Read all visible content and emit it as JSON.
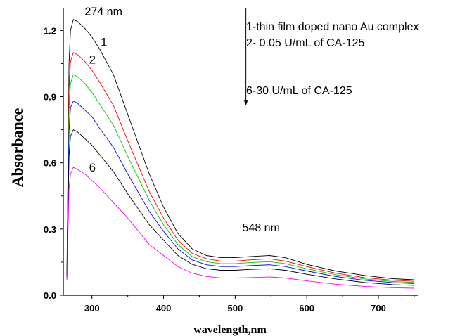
{
  "chart_data": {
    "type": "line",
    "xlabel": "wavelength,nm",
    "ylabel": "Absorbance",
    "xlim": [
      260,
      755
    ],
    "ylim": [
      0.0,
      1.3
    ],
    "xticks": [
      300,
      400,
      500,
      600,
      700
    ],
    "yticks": [
      0.0,
      0.3,
      0.6,
      0.9,
      1.2
    ],
    "xtick_labels": [
      "300",
      "400",
      "500",
      "600",
      "700"
    ],
    "ytick_labels": [
      "0.0",
      "0.3",
      "0.6",
      "0.9",
      "1.2"
    ],
    "grid": false,
    "x": [
      265,
      268,
      270,
      274,
      280,
      290,
      300,
      310,
      330,
      350,
      380,
      400,
      420,
      440,
      460,
      480,
      500,
      520,
      548,
      570,
      600,
      640,
      680,
      720,
      750
    ],
    "series": [
      {
        "name": "1",
        "color": "#000000",
        "values": [
          0.1,
          1.05,
          1.2,
          1.25,
          1.24,
          1.21,
          1.17,
          1.12,
          1.0,
          0.82,
          0.55,
          0.4,
          0.28,
          0.21,
          0.18,
          0.17,
          0.17,
          0.175,
          0.18,
          0.17,
          0.14,
          0.11,
          0.09,
          0.075,
          0.07
        ]
      },
      {
        "name": "2",
        "color": "#ff0000",
        "values": [
          0.09,
          0.93,
          1.06,
          1.1,
          1.09,
          1.06,
          1.02,
          0.97,
          0.86,
          0.7,
          0.47,
          0.35,
          0.25,
          0.19,
          0.165,
          0.155,
          0.155,
          0.16,
          0.165,
          0.155,
          0.13,
          0.1,
          0.08,
          0.068,
          0.063
        ]
      },
      {
        "name": "",
        "color": "#00cc00",
        "values": [
          0.09,
          0.84,
          0.96,
          1.0,
          0.99,
          0.96,
          0.92,
          0.87,
          0.77,
          0.63,
          0.43,
          0.32,
          0.23,
          0.175,
          0.152,
          0.143,
          0.143,
          0.148,
          0.152,
          0.143,
          0.12,
          0.093,
          0.074,
          0.062,
          0.058
        ]
      },
      {
        "name": "",
        "color": "#0000ff",
        "values": [
          0.08,
          0.74,
          0.85,
          0.88,
          0.87,
          0.84,
          0.81,
          0.76,
          0.67,
          0.55,
          0.38,
          0.29,
          0.21,
          0.16,
          0.138,
          0.13,
          0.13,
          0.134,
          0.138,
          0.13,
          0.11,
          0.085,
          0.068,
          0.057,
          0.053
        ]
      },
      {
        "name": "",
        "color": "#000000",
        "values": [
          0.08,
          0.63,
          0.72,
          0.75,
          0.74,
          0.71,
          0.68,
          0.64,
          0.56,
          0.46,
          0.32,
          0.25,
          0.18,
          0.14,
          0.12,
          0.113,
          0.113,
          0.117,
          0.12,
          0.113,
          0.095,
          0.074,
          0.058,
          0.048,
          0.045
        ]
      },
      {
        "name": "6",
        "color": "#ff00ff",
        "values": [
          0.07,
          0.48,
          0.55,
          0.58,
          0.57,
          0.55,
          0.52,
          0.49,
          0.42,
          0.35,
          0.23,
          0.18,
          0.13,
          0.1,
          0.085,
          0.078,
          0.078,
          0.08,
          0.083,
          0.078,
          0.065,
          0.05,
          0.04,
          0.034,
          0.032
        ]
      }
    ],
    "annotations": [
      {
        "name": "peak-label-274",
        "text": "274 nm",
        "x": 290,
        "y": 1.27
      },
      {
        "name": "peak-label-548",
        "text": "548 nm",
        "x": 510,
        "y": 0.29
      }
    ],
    "series_labels": [
      {
        "name": "series-label-1",
        "text": "1",
        "x": 312,
        "y": 1.13
      },
      {
        "name": "series-label-2",
        "text": "2",
        "x": 296,
        "y": 1.05
      },
      {
        "name": "series-label-6",
        "text": "6",
        "x": 296,
        "y": 0.56
      }
    ],
    "legend_text": {
      "line1": "1-thin film doped nano  Au complex",
      "line2": "2- 0.05 U/mL of CA-125",
      "line3": "6-30 U/mL of CA-125"
    },
    "legend_arrow": {
      "x": 515,
      "y_start": 1.37,
      "y_end": 0.86
    },
    "legend_text_position": "top-right"
  }
}
